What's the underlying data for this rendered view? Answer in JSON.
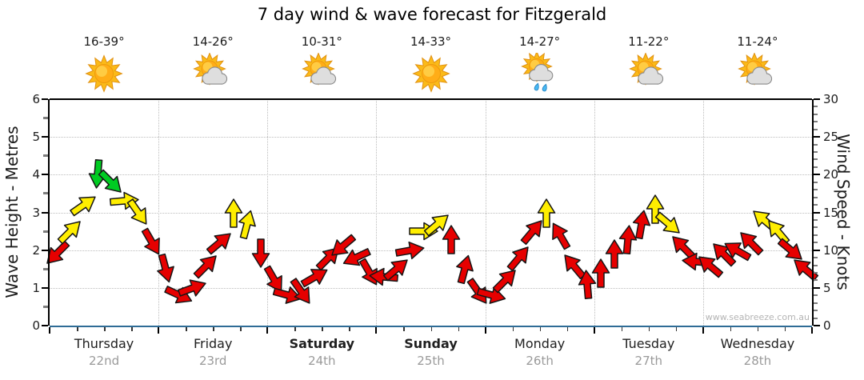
{
  "title": "7 day wind & wave forecast for Fitzgerald",
  "watermark": "www.seabreeze.com.au",
  "days": [
    {
      "name": "Thursday",
      "date": "22nd",
      "temp": "16-39°",
      "icon": "sunny",
      "bold": false
    },
    {
      "name": "Friday",
      "date": "23rd",
      "temp": "14-26°",
      "icon": "partly-cloudy",
      "bold": false
    },
    {
      "name": "Saturday",
      "date": "24th",
      "temp": "10-31°",
      "icon": "partly-cloudy",
      "bold": true
    },
    {
      "name": "Sunday",
      "date": "25th",
      "temp": "14-33°",
      "icon": "sunny",
      "bold": true
    },
    {
      "name": "Monday",
      "date": "26th",
      "temp": "14-27°",
      "icon": "showers",
      "bold": false
    },
    {
      "name": "Tuesday",
      "date": "27th",
      "temp": "11-22°",
      "icon": "partly-cloudy",
      "bold": false
    },
    {
      "name": "Wednesday",
      "date": "28th",
      "temp": "11-24°",
      "icon": "partly-cloudy",
      "bold": false
    }
  ],
  "chart_data": {
    "type": "scatter",
    "title": "7 day wind & wave forecast for Fitzgerald",
    "x_categories": [
      "Thursday 22nd",
      "Friday 23rd",
      "Saturday 24th",
      "Sunday 25th",
      "Monday 26th",
      "Tuesday 27th",
      "Wednesday 28th"
    ],
    "left_axis": {
      "label": "Wave Height - Metres",
      "range": [
        0,
        6
      ],
      "major_ticks": [
        0,
        1,
        2,
        3,
        4,
        5,
        6
      ],
      "minor_step": 0.5
    },
    "right_axis": {
      "label": "Wind Speed - Knots",
      "range": [
        0,
        30
      ],
      "major_ticks": [
        0,
        5,
        10,
        15,
        20,
        25,
        30
      ],
      "minor_step": 1
    },
    "grid": "dotted gray; horizontal every 5 knots (1 m), vertical at day boundaries",
    "legend": "none",
    "marker": "block arrows: vertical position = wind speed (right axis, knots) / wave height (left axis, metres); rotation = wind direction; color = wind strength",
    "colors": {
      "red": "#E60000",
      "yellow": "#FFEE00",
      "green": "#00CC22"
    },
    "arrows_per_day": 8,
    "arrows": [
      {
        "kn": 9.5,
        "rot": 135,
        "color": "red"
      },
      {
        "kn": 12.5,
        "rot": -45,
        "color": "yellow"
      },
      {
        "kn": 16,
        "rot": -35,
        "color": "yellow"
      },
      {
        "kn": 20,
        "rot": 95,
        "color": "green"
      },
      {
        "kn": 19,
        "rot": 45,
        "color": "green"
      },
      {
        "kn": 16.5,
        "rot": -5,
        "color": "yellow"
      },
      {
        "kn": 15,
        "rot": 55,
        "color": "yellow"
      },
      {
        "kn": 11,
        "rot": 60,
        "color": "red"
      },
      {
        "kn": 7.5,
        "rot": 75,
        "color": "red"
      },
      {
        "kn": 4,
        "rot": 25,
        "color": "red"
      },
      {
        "kn": 5,
        "rot": -20,
        "color": "red"
      },
      {
        "kn": 8,
        "rot": -45,
        "color": "red"
      },
      {
        "kn": 11,
        "rot": -40,
        "color": "red"
      },
      {
        "kn": 15,
        "rot": -90,
        "color": "yellow"
      },
      {
        "kn": 13.5,
        "rot": -75,
        "color": "yellow"
      },
      {
        "kn": 9.5,
        "rot": 90,
        "color": "red"
      },
      {
        "kn": 6,
        "rot": 60,
        "color": "red"
      },
      {
        "kn": 4,
        "rot": 15,
        "color": "red"
      },
      {
        "kn": 4.5,
        "rot": 55,
        "color": "red"
      },
      {
        "kn": 6.5,
        "rot": -30,
        "color": "red"
      },
      {
        "kn": 9,
        "rot": -45,
        "color": "red"
      },
      {
        "kn": 10.5,
        "rot": 140,
        "color": "red"
      },
      {
        "kn": 9,
        "rot": 155,
        "color": "red"
      },
      {
        "kn": 7,
        "rot": 60,
        "color": "red"
      },
      {
        "kn": 6.5,
        "rot": 185,
        "color": "red"
      },
      {
        "kn": 7.5,
        "rot": -40,
        "color": "red"
      },
      {
        "kn": 10,
        "rot": -10,
        "color": "red"
      },
      {
        "kn": 12.5,
        "rot": 0,
        "color": "yellow"
      },
      {
        "kn": 13.5,
        "rot": -40,
        "color": "yellow"
      },
      {
        "kn": 11.5,
        "rot": -90,
        "color": "red"
      },
      {
        "kn": 7.5,
        "rot": -75,
        "color": "red"
      },
      {
        "kn": 4.5,
        "rot": 55,
        "color": "red"
      },
      {
        "kn": 4,
        "rot": 15,
        "color": "red"
      },
      {
        "kn": 6,
        "rot": -45,
        "color": "red"
      },
      {
        "kn": 9,
        "rot": -50,
        "color": "red"
      },
      {
        "kn": 12.5,
        "rot": -50,
        "color": "red"
      },
      {
        "kn": 15,
        "rot": -90,
        "color": "yellow"
      },
      {
        "kn": 12,
        "rot": -120,
        "color": "red"
      },
      {
        "kn": 8,
        "rot": -130,
        "color": "red"
      },
      {
        "kn": 5.5,
        "rot": -95,
        "color": "red"
      },
      {
        "kn": 7,
        "rot": -90,
        "color": "red"
      },
      {
        "kn": 9.5,
        "rot": -90,
        "color": "red"
      },
      {
        "kn": 11.5,
        "rot": -85,
        "color": "red"
      },
      {
        "kn": 13.5,
        "rot": -80,
        "color": "red"
      },
      {
        "kn": 15.5,
        "rot": -90,
        "color": "yellow"
      },
      {
        "kn": 13.5,
        "rot": 40,
        "color": "yellow"
      },
      {
        "kn": 10.5,
        "rot": -135,
        "color": "red"
      },
      {
        "kn": 8.5,
        "rot": 185,
        "color": "red"
      },
      {
        "kn": 8,
        "rot": -140,
        "color": "red"
      },
      {
        "kn": 9.5,
        "rot": -135,
        "color": "red"
      },
      {
        "kn": 10,
        "rot": -150,
        "color": "red"
      },
      {
        "kn": 11,
        "rot": -135,
        "color": "red"
      },
      {
        "kn": 14,
        "rot": -140,
        "color": "yellow"
      },
      {
        "kn": 12.5,
        "rot": -130,
        "color": "yellow"
      },
      {
        "kn": 10,
        "rot": 40,
        "color": "red"
      },
      {
        "kn": 7.5,
        "rot": -140,
        "color": "red"
      }
    ]
  }
}
